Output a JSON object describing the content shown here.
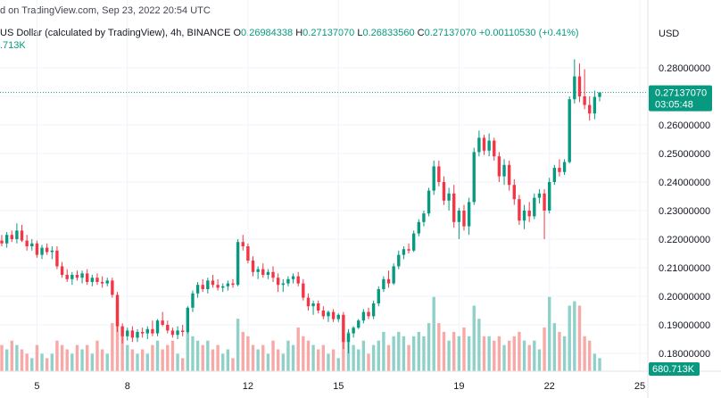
{
  "header": {
    "published": "d on TradingView.com, Sep 23, 2022 20:54 UTC",
    "symbol_title": "US Dollar (calculated by TradingView), 4h, BINANCE",
    "ohlc": {
      "o_label": "O",
      "o_value": "0.26984338",
      "h_label": "H",
      "h_value": "0.27137070",
      "l_label": "L",
      "l_value": "0.26833560",
      "c_label": "C",
      "c_value": "0.27137070",
      "change": "+0.00110530 (+0.41%)"
    },
    "volume_value": ".713K"
  },
  "price_axis": {
    "currency": "USD",
    "last_price_label": "0.27137070",
    "countdown_label": "03:05:48",
    "volume_badge_label": "680.713K"
  },
  "colors": {
    "up": "#089981",
    "down": "#f23645",
    "up_volume": "#8fd1c8",
    "down_volume": "#f7a9a7",
    "grid": "#f0f3fa",
    "axis_text": "#131722"
  },
  "chart_data": {
    "type": "candlestick",
    "y_ticks": [
      "0.28000000",
      "0.27000000",
      "0.26000000",
      "0.25000000",
      "0.24000000",
      "0.23000000",
      "0.22000000",
      "0.21000000",
      "0.20000000",
      "0.19000000",
      "0.18000000"
    ],
    "ylim": [
      0.1775,
      0.285
    ],
    "x_ticks": [
      "5",
      "8",
      "12",
      "15",
      "19",
      "22",
      "25"
    ],
    "last_price": 0.2713707,
    "candles": [
      {
        "o": 0.2195,
        "h": 0.2215,
        "l": 0.2175,
        "c": 0.2185,
        "v": 0.3
      },
      {
        "o": 0.2185,
        "h": 0.2225,
        "l": 0.217,
        "c": 0.2215,
        "v": 0.25
      },
      {
        "o": 0.2215,
        "h": 0.223,
        "l": 0.219,
        "c": 0.22,
        "v": 0.35
      },
      {
        "o": 0.22,
        "h": 0.2255,
        "l": 0.2185,
        "c": 0.223,
        "v": 0.3
      },
      {
        "o": 0.223,
        "h": 0.225,
        "l": 0.219,
        "c": 0.2195,
        "v": 0.25
      },
      {
        "o": 0.2195,
        "h": 0.2215,
        "l": 0.216,
        "c": 0.2175,
        "v": 0.2
      },
      {
        "o": 0.2175,
        "h": 0.22,
        "l": 0.216,
        "c": 0.2185,
        "v": 0.15
      },
      {
        "o": 0.2185,
        "h": 0.2195,
        "l": 0.2135,
        "c": 0.2145,
        "v": 0.3
      },
      {
        "o": 0.2145,
        "h": 0.218,
        "l": 0.213,
        "c": 0.217,
        "v": 0.2
      },
      {
        "o": 0.217,
        "h": 0.2185,
        "l": 0.2145,
        "c": 0.2155,
        "v": 0.15
      },
      {
        "o": 0.2155,
        "h": 0.2175,
        "l": 0.213,
        "c": 0.216,
        "v": 0.2
      },
      {
        "o": 0.216,
        "h": 0.2175,
        "l": 0.2095,
        "c": 0.2105,
        "v": 0.35
      },
      {
        "o": 0.2105,
        "h": 0.212,
        "l": 0.2065,
        "c": 0.2075,
        "v": 0.3
      },
      {
        "o": 0.2075,
        "h": 0.2095,
        "l": 0.205,
        "c": 0.206,
        "v": 0.25
      },
      {
        "o": 0.206,
        "h": 0.2085,
        "l": 0.204,
        "c": 0.2075,
        "v": 0.2
      },
      {
        "o": 0.2075,
        "h": 0.209,
        "l": 0.2055,
        "c": 0.2065,
        "v": 0.3
      },
      {
        "o": 0.2065,
        "h": 0.209,
        "l": 0.2045,
        "c": 0.208,
        "v": 0.25
      },
      {
        "o": 0.208,
        "h": 0.2095,
        "l": 0.204,
        "c": 0.205,
        "v": 0.3
      },
      {
        "o": 0.205,
        "h": 0.2075,
        "l": 0.2035,
        "c": 0.2065,
        "v": 0.2
      },
      {
        "o": 0.2065,
        "h": 0.208,
        "l": 0.204,
        "c": 0.205,
        "v": 0.35
      },
      {
        "o": 0.205,
        "h": 0.207,
        "l": 0.203,
        "c": 0.2045,
        "v": 0.25
      },
      {
        "o": 0.2045,
        "h": 0.2065,
        "l": 0.2035,
        "c": 0.2055,
        "v": 0.2
      },
      {
        "o": 0.2055,
        "h": 0.2065,
        "l": 0.1995,
        "c": 0.2005,
        "v": 0.55
      },
      {
        "o": 0.2005,
        "h": 0.2015,
        "l": 0.1875,
        "c": 0.1895,
        "v": 0.8
      },
      {
        "o": 0.1895,
        "h": 0.1905,
        "l": 0.1835,
        "c": 0.186,
        "v": 0.5
      },
      {
        "o": 0.186,
        "h": 0.189,
        "l": 0.1845,
        "c": 0.188,
        "v": 0.3
      },
      {
        "o": 0.188,
        "h": 0.1895,
        "l": 0.184,
        "c": 0.1855,
        "v": 0.25
      },
      {
        "o": 0.1855,
        "h": 0.1885,
        "l": 0.184,
        "c": 0.1875,
        "v": 0.2
      },
      {
        "o": 0.1875,
        "h": 0.189,
        "l": 0.1855,
        "c": 0.187,
        "v": 0.25
      },
      {
        "o": 0.187,
        "h": 0.1895,
        "l": 0.185,
        "c": 0.1885,
        "v": 0.2
      },
      {
        "o": 0.1885,
        "h": 0.1915,
        "l": 0.186,
        "c": 0.187,
        "v": 0.3
      },
      {
        "o": 0.187,
        "h": 0.192,
        "l": 0.186,
        "c": 0.1915,
        "v": 0.35
      },
      {
        "o": 0.1915,
        "h": 0.1945,
        "l": 0.1895,
        "c": 0.19,
        "v": 0.25
      },
      {
        "o": 0.19,
        "h": 0.1915,
        "l": 0.187,
        "c": 0.188,
        "v": 0.3
      },
      {
        "o": 0.188,
        "h": 0.189,
        "l": 0.1855,
        "c": 0.1865,
        "v": 0.35
      },
      {
        "o": 0.1865,
        "h": 0.1895,
        "l": 0.185,
        "c": 0.188,
        "v": 0.2
      },
      {
        "o": 0.188,
        "h": 0.19,
        "l": 0.186,
        "c": 0.1875,
        "v": 0.15
      },
      {
        "o": 0.1875,
        "h": 0.1965,
        "l": 0.187,
        "c": 0.196,
        "v": 0.45
      },
      {
        "o": 0.196,
        "h": 0.202,
        "l": 0.1945,
        "c": 0.201,
        "v": 0.4
      },
      {
        "o": 0.201,
        "h": 0.205,
        "l": 0.1995,
        "c": 0.204,
        "v": 0.35
      },
      {
        "o": 0.204,
        "h": 0.206,
        "l": 0.2015,
        "c": 0.2025,
        "v": 0.3
      },
      {
        "o": 0.2025,
        "h": 0.2065,
        "l": 0.201,
        "c": 0.2055,
        "v": 0.35
      },
      {
        "o": 0.2055,
        "h": 0.2075,
        "l": 0.203,
        "c": 0.204,
        "v": 0.25
      },
      {
        "o": 0.204,
        "h": 0.206,
        "l": 0.202,
        "c": 0.203,
        "v": 0.3
      },
      {
        "o": 0.203,
        "h": 0.2045,
        "l": 0.2015,
        "c": 0.2035,
        "v": 0.2
      },
      {
        "o": 0.2035,
        "h": 0.2055,
        "l": 0.202,
        "c": 0.2045,
        "v": 0.25
      },
      {
        "o": 0.2045,
        "h": 0.206,
        "l": 0.203,
        "c": 0.204,
        "v": 0.15
      },
      {
        "o": 0.204,
        "h": 0.22,
        "l": 0.2035,
        "c": 0.219,
        "v": 0.6
      },
      {
        "o": 0.219,
        "h": 0.2215,
        "l": 0.216,
        "c": 0.2175,
        "v": 0.45
      },
      {
        "o": 0.2175,
        "h": 0.2185,
        "l": 0.2115,
        "c": 0.2125,
        "v": 0.4
      },
      {
        "o": 0.2125,
        "h": 0.214,
        "l": 0.207,
        "c": 0.2085,
        "v": 0.3
      },
      {
        "o": 0.2085,
        "h": 0.2105,
        "l": 0.206,
        "c": 0.2095,
        "v": 0.25
      },
      {
        "o": 0.2095,
        "h": 0.2115,
        "l": 0.2065,
        "c": 0.2075,
        "v": 0.3
      },
      {
        "o": 0.2075,
        "h": 0.2095,
        "l": 0.206,
        "c": 0.2085,
        "v": 0.2
      },
      {
        "o": 0.2085,
        "h": 0.2105,
        "l": 0.205,
        "c": 0.2065,
        "v": 0.35
      },
      {
        "o": 0.2065,
        "h": 0.208,
        "l": 0.2015,
        "c": 0.204,
        "v": 0.25
      },
      {
        "o": 0.204,
        "h": 0.206,
        "l": 0.2015,
        "c": 0.2045,
        "v": 0.2
      },
      {
        "o": 0.2045,
        "h": 0.207,
        "l": 0.2035,
        "c": 0.206,
        "v": 0.35
      },
      {
        "o": 0.206,
        "h": 0.208,
        "l": 0.2045,
        "c": 0.207,
        "v": 0.3
      },
      {
        "o": 0.207,
        "h": 0.2085,
        "l": 0.2035,
        "c": 0.2045,
        "v": 0.5
      },
      {
        "o": 0.2045,
        "h": 0.206,
        "l": 0.1985,
        "c": 0.1995,
        "v": 0.4
      },
      {
        "o": 0.1995,
        "h": 0.201,
        "l": 0.195,
        "c": 0.1965,
        "v": 0.35
      },
      {
        "o": 0.1965,
        "h": 0.1985,
        "l": 0.1935,
        "c": 0.1975,
        "v": 0.3
      },
      {
        "o": 0.1975,
        "h": 0.1985,
        "l": 0.194,
        "c": 0.195,
        "v": 0.25
      },
      {
        "o": 0.195,
        "h": 0.1965,
        "l": 0.192,
        "c": 0.193,
        "v": 0.3
      },
      {
        "o": 0.193,
        "h": 0.195,
        "l": 0.191,
        "c": 0.1945,
        "v": 0.2
      },
      {
        "o": 0.1945,
        "h": 0.1955,
        "l": 0.191,
        "c": 0.192,
        "v": 0.25
      },
      {
        "o": 0.192,
        "h": 0.194,
        "l": 0.191,
        "c": 0.1935,
        "v": 0.15
      },
      {
        "o": 0.1935,
        "h": 0.1945,
        "l": 0.1815,
        "c": 0.184,
        "v": 0.55
      },
      {
        "o": 0.184,
        "h": 0.1885,
        "l": 0.18,
        "c": 0.187,
        "v": 0.45
      },
      {
        "o": 0.187,
        "h": 0.1895,
        "l": 0.1855,
        "c": 0.189,
        "v": 0.3
      },
      {
        "o": 0.189,
        "h": 0.192,
        "l": 0.1885,
        "c": 0.1915,
        "v": 0.25
      },
      {
        "o": 0.1915,
        "h": 0.1955,
        "l": 0.1905,
        "c": 0.1945,
        "v": 0.35
      },
      {
        "o": 0.1945,
        "h": 0.196,
        "l": 0.192,
        "c": 0.193,
        "v": 0.2
      },
      {
        "o": 0.193,
        "h": 0.1985,
        "l": 0.192,
        "c": 0.1975,
        "v": 0.3
      },
      {
        "o": 0.1975,
        "h": 0.2035,
        "l": 0.1965,
        "c": 0.2025,
        "v": 0.35
      },
      {
        "o": 0.2025,
        "h": 0.207,
        "l": 0.2015,
        "c": 0.206,
        "v": 0.45
      },
      {
        "o": 0.206,
        "h": 0.209,
        "l": 0.203,
        "c": 0.2045,
        "v": 0.3
      },
      {
        "o": 0.2045,
        "h": 0.2115,
        "l": 0.204,
        "c": 0.2105,
        "v": 0.4
      },
      {
        "o": 0.2105,
        "h": 0.216,
        "l": 0.2095,
        "c": 0.2145,
        "v": 0.45
      },
      {
        "o": 0.2145,
        "h": 0.2175,
        "l": 0.213,
        "c": 0.2165,
        "v": 0.4
      },
      {
        "o": 0.2165,
        "h": 0.2185,
        "l": 0.215,
        "c": 0.216,
        "v": 0.3
      },
      {
        "o": 0.216,
        "h": 0.223,
        "l": 0.2155,
        "c": 0.222,
        "v": 0.4
      },
      {
        "o": 0.222,
        "h": 0.227,
        "l": 0.221,
        "c": 0.226,
        "v": 0.45
      },
      {
        "o": 0.226,
        "h": 0.23,
        "l": 0.2245,
        "c": 0.229,
        "v": 0.4
      },
      {
        "o": 0.229,
        "h": 0.238,
        "l": 0.228,
        "c": 0.237,
        "v": 0.55
      },
      {
        "o": 0.237,
        "h": 0.2475,
        "l": 0.2355,
        "c": 0.2455,
        "v": 0.85
      },
      {
        "o": 0.2455,
        "h": 0.2475,
        "l": 0.2385,
        "c": 0.24,
        "v": 0.55
      },
      {
        "o": 0.24,
        "h": 0.242,
        "l": 0.232,
        "c": 0.2335,
        "v": 0.45
      },
      {
        "o": 0.2335,
        "h": 0.238,
        "l": 0.23,
        "c": 0.236,
        "v": 0.35
      },
      {
        "o": 0.236,
        "h": 0.239,
        "l": 0.224,
        "c": 0.226,
        "v": 0.45
      },
      {
        "o": 0.226,
        "h": 0.231,
        "l": 0.22,
        "c": 0.23,
        "v": 0.4
      },
      {
        "o": 0.23,
        "h": 0.232,
        "l": 0.223,
        "c": 0.2245,
        "v": 0.5
      },
      {
        "o": 0.2245,
        "h": 0.2345,
        "l": 0.2215,
        "c": 0.233,
        "v": 0.4
      },
      {
        "o": 0.233,
        "h": 0.252,
        "l": 0.232,
        "c": 0.2505,
        "v": 0.75
      },
      {
        "o": 0.2505,
        "h": 0.258,
        "l": 0.249,
        "c": 0.2555,
        "v": 0.6
      },
      {
        "o": 0.2555,
        "h": 0.2565,
        "l": 0.2495,
        "c": 0.251,
        "v": 0.4
      },
      {
        "o": 0.251,
        "h": 0.257,
        "l": 0.249,
        "c": 0.2545,
        "v": 0.4
      },
      {
        "o": 0.2545,
        "h": 0.2555,
        "l": 0.2475,
        "c": 0.249,
        "v": 0.35
      },
      {
        "o": 0.249,
        "h": 0.2505,
        "l": 0.24,
        "c": 0.242,
        "v": 0.4
      },
      {
        "o": 0.242,
        "h": 0.248,
        "l": 0.239,
        "c": 0.246,
        "v": 0.3
      },
      {
        "o": 0.246,
        "h": 0.2475,
        "l": 0.237,
        "c": 0.239,
        "v": 0.35
      },
      {
        "o": 0.239,
        "h": 0.241,
        "l": 0.232,
        "c": 0.234,
        "v": 0.4
      },
      {
        "o": 0.234,
        "h": 0.2355,
        "l": 0.225,
        "c": 0.2265,
        "v": 0.45
      },
      {
        "o": 0.2265,
        "h": 0.232,
        "l": 0.2235,
        "c": 0.23,
        "v": 0.35
      },
      {
        "o": 0.23,
        "h": 0.233,
        "l": 0.226,
        "c": 0.228,
        "v": 0.3
      },
      {
        "o": 0.228,
        "h": 0.236,
        "l": 0.227,
        "c": 0.2345,
        "v": 0.35
      },
      {
        "o": 0.2345,
        "h": 0.2375,
        "l": 0.2325,
        "c": 0.236,
        "v": 0.25
      },
      {
        "o": 0.236,
        "h": 0.2375,
        "l": 0.22,
        "c": 0.23,
        "v": 0.5
      },
      {
        "o": 0.23,
        "h": 0.2415,
        "l": 0.229,
        "c": 0.24,
        "v": 0.85
      },
      {
        "o": 0.24,
        "h": 0.246,
        "l": 0.239,
        "c": 0.245,
        "v": 0.55
      },
      {
        "o": 0.245,
        "h": 0.248,
        "l": 0.242,
        "c": 0.2435,
        "v": 0.45
      },
      {
        "o": 0.2435,
        "h": 0.248,
        "l": 0.2425,
        "c": 0.247,
        "v": 0.4
      },
      {
        "o": 0.247,
        "h": 0.27,
        "l": 0.2465,
        "c": 0.269,
        "v": 0.75
      },
      {
        "o": 0.269,
        "h": 0.283,
        "l": 0.2675,
        "c": 0.277,
        "v": 0.8
      },
      {
        "o": 0.277,
        "h": 0.2815,
        "l": 0.268,
        "c": 0.27,
        "v": 0.75
      },
      {
        "o": 0.27,
        "h": 0.2795,
        "l": 0.2655,
        "c": 0.267,
        "v": 0.4
      },
      {
        "o": 0.267,
        "h": 0.27,
        "l": 0.2615,
        "c": 0.264,
        "v": 0.35
      },
      {
        "o": 0.264,
        "h": 0.272,
        "l": 0.262,
        "c": 0.2698,
        "v": 0.2
      },
      {
        "o": 0.2698,
        "h": 0.2714,
        "l": 0.2683,
        "c": 0.2714,
        "v": 0.15
      }
    ]
  }
}
